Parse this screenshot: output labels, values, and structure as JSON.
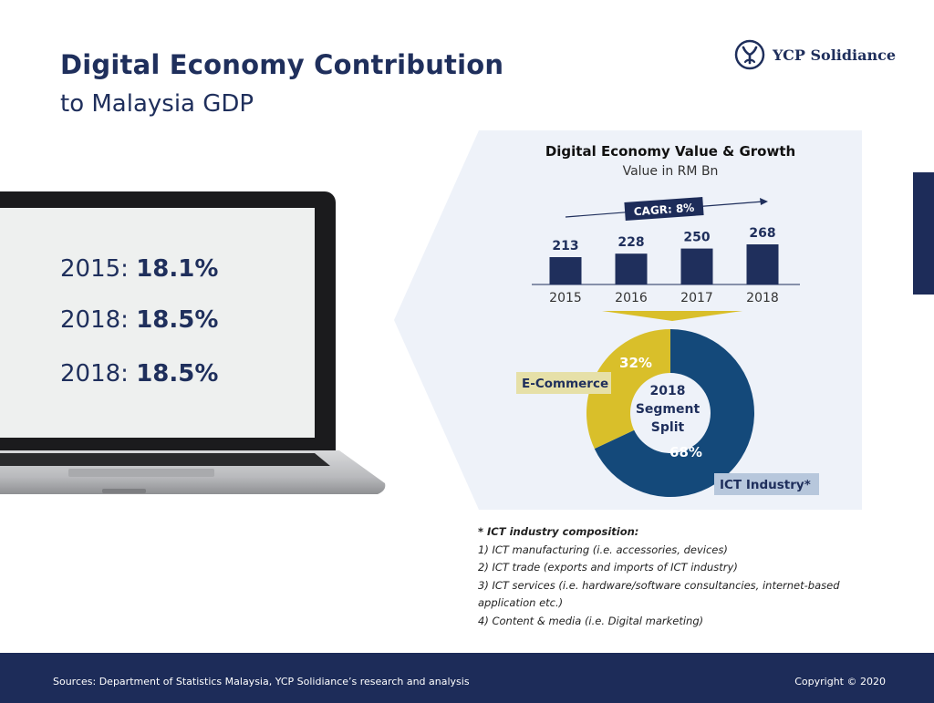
{
  "header": {
    "title": "Digital Economy Contribution",
    "subtitle": "to Malaysia GDP"
  },
  "brand": {
    "name": "YCP Solidiance",
    "logo_icon": "ycp-logo-icon"
  },
  "laptop": {
    "lines": [
      {
        "label": "2015: ",
        "value": "18.1%"
      },
      {
        "label": "2018: ",
        "value": "18.5%"
      },
      {
        "label": "2018: ",
        "value": "18.5%"
      }
    ]
  },
  "colors": {
    "navy": "#1d2c59",
    "bar": "#1f2f5c",
    "donut_ict": "#14497a",
    "donut_ecom": "#d9bf2a",
    "ecom_label_bg": "#e6e0a8",
    "ict_label_bg": "#b7c7dc",
    "panel_bg": "#eef2f9"
  },
  "chart_data": [
    {
      "type": "bar",
      "title": "Digital Economy Value & Growth",
      "subtitle": "Value in RM Bn",
      "categories": [
        "2015",
        "2016",
        "2017",
        "2018"
      ],
      "values": [
        213,
        228,
        250,
        268
      ],
      "value_labels": [
        "213",
        "228",
        "250",
        "268"
      ],
      "annotation": "CAGR: 8%",
      "grid": false,
      "legend": "none"
    },
    {
      "type": "pie",
      "variant": "donut",
      "center_label": [
        "2018",
        "Segment",
        "Split"
      ],
      "slices": [
        {
          "name": "ICT Industry*",
          "value": 68,
          "label": "68%"
        },
        {
          "name": "E-Commerce",
          "value": 32,
          "label": "32%"
        }
      ]
    }
  ],
  "footnote": {
    "title": "* ICT industry composition:",
    "items": [
      "1) ICT manufacturing (i.e. accessories, devices)",
      "2) ICT trade (exports and imports of ICT industry)",
      "3) ICT services (i.e. hardware/software consultancies, internet-based application etc.)",
      "4) Content & media (i.e. Digital marketing)"
    ]
  },
  "footer": {
    "sources": "Sources: Department of Statistics Malaysia, YCP Solidiance’s research and analysis",
    "copyright": "Copyright © 2020"
  }
}
